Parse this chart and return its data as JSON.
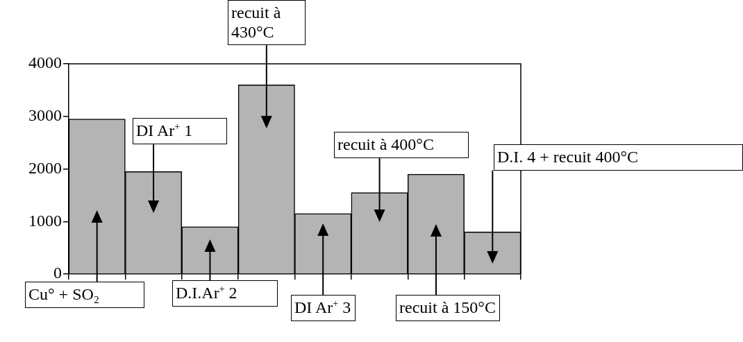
{
  "chart_data": {
    "type": "bar",
    "categories": [
      null,
      null,
      null,
      null,
      null,
      null,
      null,
      null
    ],
    "values": [
      2950,
      1950,
      900,
      3600,
      1150,
      1550,
      1900,
      800
    ],
    "color": "#b4b4b4",
    "ylim": [
      0,
      4000
    ],
    "yticks": [
      0,
      1000,
      2000,
      3000,
      4000
    ],
    "annotations": [
      "Cu° + SO₂",
      "DI Ar$^{+}$ 1",
      "D.I.Ar$^{+}$ 2",
      "recuit à 430°C",
      "DI Ar$^{+}$ 3",
      "recuit à 400°C",
      "recuit à 150°C",
      "D.I. 4 + recuit 400°C"
    ]
  }
}
